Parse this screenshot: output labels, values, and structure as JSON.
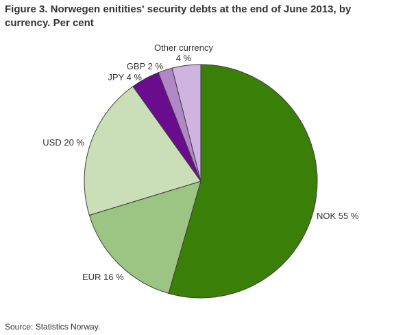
{
  "header": {
    "title": "Figure 3. Norwegen enitities' security debts at the end of June 2013, by\ncurrency. Per cent"
  },
  "footer": {
    "source": "Source: Statistics Norway."
  },
  "chart_data": {
    "type": "pie",
    "title": "Figure 3. Norwegen enitities' security debts at the end of June 2013, by currency. Per cent",
    "unit": "per cent",
    "start_angle_deg": 0,
    "direction": "clockwise",
    "border_color": "#3d3d3d",
    "background_color": "#ffffff",
    "slices": [
      {
        "label": "NOK",
        "value": 55,
        "display": "NOK 55 %",
        "color": "#3a8008"
      },
      {
        "label": "EUR",
        "value": 16,
        "display": "EUR 16 %",
        "color": "#9cc482"
      },
      {
        "label": "USD",
        "value": 20,
        "display": "USD 20 %",
        "color": "#cadeb8"
      },
      {
        "label": "JPY",
        "value": 4,
        "display": "JPY 4 %",
        "color": "#6a0c8e"
      },
      {
        "label": "GBP",
        "value": 2,
        "display": "GBP 2 %",
        "color": "#b287c8"
      },
      {
        "label": "Other currency",
        "value": 4,
        "display": "Other currency\n4 %",
        "color": "#d0b4e0"
      }
    ]
  }
}
